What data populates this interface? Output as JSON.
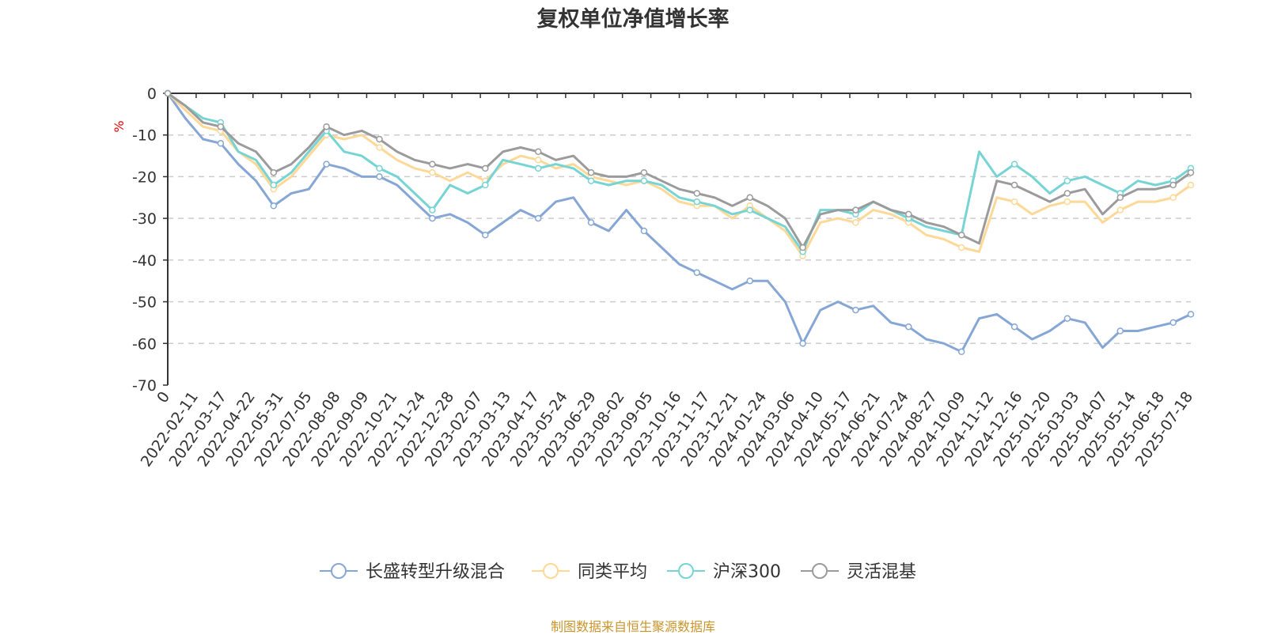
{
  "title": "复权单位净值增长率",
  "source_note": "制图数据来自恒生聚源数据库",
  "chart_data": {
    "type": "line",
    "title": "复权单位净值增长率",
    "ylabel": "%",
    "ylim": [
      -70,
      0
    ],
    "yticks": [
      0,
      -10,
      -20,
      -30,
      -40,
      -50,
      -60,
      -70
    ],
    "grid": true,
    "legend_position": "bottom",
    "x_start_label": "0",
    "x_tick_labels": [
      "2022-02-11",
      "2022-03-17",
      "2022-04-22",
      "2022-05-31",
      "2022-07-05",
      "2022-08-08",
      "2022-09-09",
      "2022-10-21",
      "2022-11-24",
      "2022-12-28",
      "2023-02-07",
      "2023-03-13",
      "2023-04-17",
      "2023-05-24",
      "2023-06-29",
      "2023-08-02",
      "2023-09-05",
      "2023-10-16",
      "2023-11-17",
      "2023-12-21",
      "2024-01-24",
      "2024-03-06",
      "2024-04-10",
      "2024-05-17",
      "2024-06-21",
      "2024-07-24",
      "2024-08-27",
      "2024-10-09",
      "2024-11-12",
      "2024-12-16",
      "2025-01-20",
      "2025-03-03",
      "2025-04-07",
      "2025-05-14",
      "2025-06-18",
      "2025-07-18"
    ],
    "series": [
      {
        "name": "长盛转型升级混合",
        "color": "#86a6d6",
        "values": [
          0,
          -6,
          -11,
          -12,
          -17,
          -21,
          -27,
          -24,
          -23,
          -17,
          -18,
          -20,
          -20,
          -22,
          -26,
          -30,
          -29,
          -31,
          -34,
          -31,
          -28,
          -30,
          -26,
          -25,
          -31,
          -33,
          -28,
          -33,
          -37,
          -41,
          -43,
          -45,
          -47,
          -45,
          -45,
          -50,
          -60,
          -52,
          -50,
          -52,
          -51,
          -55,
          -56,
          -59,
          -60,
          -62,
          -54,
          -53,
          -56,
          -59,
          -57,
          -54,
          -55,
          -61,
          -57,
          -57,
          -56,
          -55,
          -53
        ]
      },
      {
        "name": "同类平均",
        "color": "#fdd896",
        "values": [
          0,
          -4,
          -8,
          -9,
          -14,
          -17,
          -23,
          -20,
          -15,
          -10,
          -11,
          -10,
          -13,
          -16,
          -18,
          -19,
          -21,
          -19,
          -21,
          -17,
          -15,
          -16,
          -18,
          -17,
          -20,
          -21,
          -22,
          -21,
          -23,
          -26,
          -27,
          -27,
          -30,
          -27,
          -30,
          -33,
          -39,
          -31,
          -30,
          -31,
          -28,
          -29,
          -31,
          -34,
          -35,
          -37,
          -38,
          -25,
          -26,
          -29,
          -27,
          -26,
          -26,
          -31,
          -28,
          -26,
          -26,
          -25,
          -22
        ]
      },
      {
        "name": "沪深300",
        "color": "#76d4d4",
        "values": [
          0,
          -3,
          -6,
          -7,
          -14,
          -16,
          -22,
          -19,
          -14,
          -9,
          -14,
          -15,
          -18,
          -20,
          -24,
          -28,
          -22,
          -24,
          -22,
          -16,
          -17,
          -18,
          -17,
          -18,
          -21,
          -22,
          -21,
          -21,
          -22,
          -25,
          -26,
          -27,
          -29,
          -28,
          -30,
          -32,
          -38,
          -28,
          -28,
          -29,
          -26,
          -28,
          -30,
          -32,
          -33,
          -34,
          -14,
          -20,
          -17,
          -20,
          -24,
          -21,
          -20,
          -22,
          -24,
          -21,
          -22,
          -21,
          -18
        ]
      },
      {
        "name": "灵活混基",
        "color": "#9b9b9b",
        "values": [
          0,
          -3,
          -7,
          -8,
          -12,
          -14,
          -19,
          -17,
          -13,
          -8,
          -10,
          -9,
          -11,
          -14,
          -16,
          -17,
          -18,
          -17,
          -18,
          -14,
          -13,
          -14,
          -16,
          -15,
          -19,
          -20,
          -20,
          -19,
          -21,
          -23,
          -24,
          -25,
          -27,
          -25,
          -27,
          -30,
          -37,
          -29,
          -28,
          -28,
          -26,
          -28,
          -29,
          -31,
          -32,
          -34,
          -36,
          -21,
          -22,
          -24,
          -26,
          -24,
          -23,
          -29,
          -25,
          -23,
          -23,
          -22,
          -19
        ]
      }
    ]
  }
}
